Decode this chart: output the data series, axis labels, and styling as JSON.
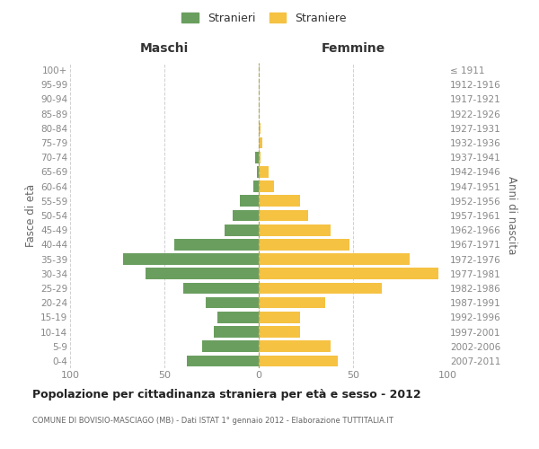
{
  "age_groups": [
    "0-4",
    "5-9",
    "10-14",
    "15-19",
    "20-24",
    "25-29",
    "30-34",
    "35-39",
    "40-44",
    "45-49",
    "50-54",
    "55-59",
    "60-64",
    "65-69",
    "70-74",
    "75-79",
    "80-84",
    "85-89",
    "90-94",
    "95-99",
    "100+"
  ],
  "birth_years": [
    "2007-2011",
    "2002-2006",
    "1997-2001",
    "1992-1996",
    "1987-1991",
    "1982-1986",
    "1977-1981",
    "1972-1976",
    "1967-1971",
    "1962-1966",
    "1957-1961",
    "1952-1956",
    "1947-1951",
    "1942-1946",
    "1937-1941",
    "1932-1936",
    "1927-1931",
    "1922-1926",
    "1917-1921",
    "1912-1916",
    "≤ 1911"
  ],
  "maschi": [
    38,
    30,
    24,
    22,
    28,
    40,
    60,
    72,
    45,
    18,
    14,
    10,
    3,
    1,
    2,
    0,
    0,
    0,
    0,
    0,
    0
  ],
  "femmine": [
    42,
    38,
    22,
    22,
    35,
    65,
    95,
    80,
    48,
    38,
    26,
    22,
    8,
    5,
    1,
    2,
    1,
    0,
    0,
    0,
    0
  ],
  "maschi_color": "#6a9e5f",
  "femmine_color": "#f5c242",
  "title": "Popolazione per cittadinanza straniera per età e sesso - 2012",
  "subtitle": "COMUNE DI BOVISIO-MASCIAGO (MB) - Dati ISTAT 1° gennaio 2012 - Elaborazione TUTTITALIA.IT",
  "label_maschi": "Maschi",
  "label_femmine": "Femmine",
  "ylabel_left": "Fasce di età",
  "ylabel_right": "Anni di nascita",
  "legend_maschi": "Stranieri",
  "legend_femmine": "Straniere",
  "xlim": 100,
  "bg": "#ffffff",
  "grid_color": "#d0d0d0",
  "tick_color": "#888888"
}
